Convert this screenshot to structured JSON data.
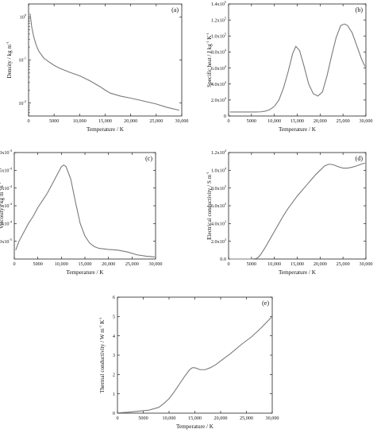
{
  "chart_data": [
    {
      "id": "a",
      "type": "line",
      "panel_label": "(a)",
      "xlabel": "Temperature / K",
      "ylabel": "Density / kg m",
      "ylabel_sup": "-3",
      "yscale": "log",
      "xlim": [
        0,
        30000
      ],
      "ylim": [
        0.005,
        2
      ],
      "xticks": [
        0,
        5000,
        10000,
        15000,
        20000,
        25000,
        30000
      ],
      "xtick_labels": [
        "0",
        "5000",
        "10,000",
        "15,000",
        "20,000",
        "25,000",
        "30,000"
      ],
      "yticks": [
        {
          "base": "10",
          "exp": "0",
          "value": 1
        },
        {
          "base": "10",
          "exp": "-1",
          "value": 0.1
        },
        {
          "base": "10",
          "exp": "-2",
          "value": 0.01
        }
      ],
      "series": [
        {
          "x": [
            300,
            600,
            1000,
            1500,
            2000,
            3000,
            4000,
            5000,
            6000,
            8000,
            10000,
            12000,
            14000,
            15000,
            16000,
            18000,
            20000,
            22000,
            25000,
            27000,
            29500
          ],
          "y": [
            1.2,
            0.6,
            0.35,
            0.22,
            0.16,
            0.11,
            0.09,
            0.075,
            0.065,
            0.052,
            0.043,
            0.033,
            0.024,
            0.02,
            0.017,
            0.0145,
            0.013,
            0.0115,
            0.0095,
            0.008,
            0.0068
          ]
        }
      ]
    },
    {
      "id": "b",
      "type": "line",
      "panel_label": "(b)",
      "xlabel": "Temperature / K",
      "ylabel": "Specific heat / J kg",
      "ylabel_sup": "-1",
      "ylabel_mid": "K",
      "ylabel_sup2": "-1",
      "xlim": [
        0,
        30000
      ],
      "ylim": [
        0,
        140000
      ],
      "xticks": [
        0,
        5000,
        10000,
        15000,
        20000,
        25000,
        30000
      ],
      "xtick_labels": [
        "0",
        "5000",
        "10,000",
        "15,000",
        "20,000",
        "25,000",
        "30,000"
      ],
      "yticks": [
        {
          "base": "0",
          "exp": "",
          "value": 0
        },
        {
          "base": "2.0x10",
          "exp": "4",
          "value": 20000
        },
        {
          "base": "4.0x10",
          "exp": "4",
          "value": 40000
        },
        {
          "base": "6.0x10",
          "exp": "4",
          "value": 60000
        },
        {
          "base": "8.0x10",
          "exp": "4",
          "value": 80000
        },
        {
          "base": "1.0x10",
          "exp": "5",
          "value": 100000
        },
        {
          "base": "1.2x10",
          "exp": "5",
          "value": 120000
        },
        {
          "base": "1.4x10",
          "exp": "5",
          "value": 140000
        }
      ],
      "series": [
        {
          "x": [
            300,
            2000,
            4000,
            6000,
            7000,
            8000,
            9000,
            10000,
            11000,
            12000,
            13000,
            14000,
            14700,
            15500,
            16500,
            17500,
            18500,
            19500,
            20500,
            21500,
            22500,
            23500,
            24500,
            25300,
            26000,
            27000,
            28000,
            29000,
            29800
          ],
          "y": [
            5000,
            5000,
            5000,
            5000,
            5200,
            6000,
            8000,
            12000,
            20000,
            35000,
            55000,
            78000,
            87000,
            82000,
            62000,
            40000,
            28000,
            25000,
            30000,
            50000,
            75000,
            98000,
            113000,
            115000,
            113000,
            104000,
            88000,
            72000,
            62000
          ]
        }
      ]
    },
    {
      "id": "c",
      "type": "line",
      "panel_label": "(c)",
      "xlabel": "Temperature / K",
      "ylabel": "Viscosity / kg m",
      "ylabel_sup": "-1",
      "ylabel_mid": "s",
      "ylabel_sup2": "-1",
      "xlim": [
        0,
        30000
      ],
      "ylim": [
        0,
        0.0003
      ],
      "xticks": [
        0,
        5000,
        10000,
        15000,
        20000,
        25000,
        30000
      ],
      "xtick_labels": [
        "0",
        "5000",
        "10,000",
        "15,000",
        "20,000",
        "25,000",
        "30,000"
      ],
      "yticks": [
        {
          "base": "5.0x10",
          "exp": "-5",
          "value": 5e-05
        },
        {
          "base": "1.0x10",
          "exp": "-4",
          "value": 0.0001
        },
        {
          "base": "1.5x10",
          "exp": "-4",
          "value": 0.00015
        },
        {
          "base": "2.0x10",
          "exp": "-4",
          "value": 0.0002
        },
        {
          "base": "2.5x10",
          "exp": "-4",
          "value": 0.00025
        },
        {
          "base": "3.0x10",
          "exp": "-4",
          "value": 0.0003
        }
      ],
      "series": [
        {
          "x": [
            300,
            1000,
            2000,
            3000,
            4000,
            5000,
            6000,
            7000,
            8000,
            9000,
            10000,
            10500,
            11000,
            12000,
            13000,
            14000,
            15000,
            16000,
            17000,
            18000,
            20000,
            22000,
            24000,
            26000,
            28000,
            29800
          ],
          "y": [
            2.5e-05,
            5e-05,
            7.5e-05,
            0.0001,
            0.00012,
            0.000145,
            0.000165,
            0.000185,
            0.00021,
            0.000235,
            0.00026,
            0.000265,
            0.00026,
            0.000225,
            0.00016,
            0.0001,
            6.5e-05,
            4.5e-05,
            3.5e-05,
            3e-05,
            2.7e-05,
            2.5e-05,
            2e-05,
            1.2e-05,
            8e-06,
            6e-06
          ]
        }
      ]
    },
    {
      "id": "d",
      "type": "line",
      "panel_label": "(d)",
      "xlabel": "Temperature / K",
      "ylabel": "Electrical conductivity / S m",
      "ylabel_sup": "-1",
      "xlim": [
        0,
        30000
      ],
      "ylim": [
        0,
        12000
      ],
      "xticks": [
        0,
        5000,
        10000,
        15000,
        20000,
        25000,
        30000
      ],
      "xtick_labels": [
        "0",
        "5000",
        "10,000",
        "15,000",
        "20,000",
        "25,000",
        "30,000"
      ],
      "yticks": [
        {
          "base": "0.0",
          "exp": "",
          "value": 0
        },
        {
          "base": "2.0x10",
          "exp": "3",
          "value": 2000
        },
        {
          "base": "4.0x10",
          "exp": "3",
          "value": 4000
        },
        {
          "base": "6.0x10",
          "exp": "3",
          "value": 6000
        },
        {
          "base": "8.0x10",
          "exp": "3",
          "value": 8000
        },
        {
          "base": "1.0x10",
          "exp": "4",
          "value": 10000
        },
        {
          "base": "1.2x10",
          "exp": "4",
          "value": 12000
        }
      ],
      "series": [
        {
          "x": [
            300,
            3000,
            5000,
            6000,
            6500,
            7000,
            8000,
            9000,
            10000,
            11000,
            12000,
            13000,
            14000,
            15000,
            16000,
            17000,
            18000,
            19000,
            20000,
            21000,
            22000,
            23000,
            24000,
            25000,
            26000,
            27000,
            28000,
            29000,
            29800
          ],
          "y": [
            0,
            0,
            0,
            50,
            200,
            500,
            1300,
            2200,
            3100,
            4000,
            4900,
            5700,
            6400,
            7100,
            7700,
            8300,
            8900,
            9500,
            10000,
            10500,
            10700,
            10600,
            10400,
            10250,
            10250,
            10350,
            10500,
            10700,
            10800
          ]
        }
      ]
    },
    {
      "id": "e",
      "type": "line",
      "panel_label": "(e)",
      "xlabel": "Temperature / K",
      "ylabel": "Thermal conductivity / W m",
      "ylabel_sup": "-1",
      "ylabel_mid": "K",
      "ylabel_sup2": "-1",
      "xlim": [
        0,
        30000
      ],
      "ylim": [
        0,
        6
      ],
      "xticks": [
        0,
        5000,
        10000,
        15000,
        20000,
        25000,
        30000
      ],
      "xtick_labels": [
        "0",
        "5000",
        "10,000",
        "15,000",
        "20,000",
        "25,000",
        "30,000"
      ],
      "yticks": [
        {
          "base": "0",
          "exp": "",
          "value": 0
        },
        {
          "base": "1",
          "exp": "",
          "value": 1
        },
        {
          "base": "2",
          "exp": "",
          "value": 2
        },
        {
          "base": "3",
          "exp": "",
          "value": 3
        },
        {
          "base": "4",
          "exp": "",
          "value": 4
        },
        {
          "base": "5",
          "exp": "",
          "value": 5
        },
        {
          "base": "6",
          "exp": "",
          "value": 6
        }
      ],
      "series": [
        {
          "x": [
            300,
            2000,
            4000,
            6000,
            8000,
            9000,
            10000,
            11000,
            12000,
            13000,
            14000,
            14500,
            15000,
            16000,
            17000,
            18000,
            19000,
            20000,
            22000,
            24000,
            26000,
            28000,
            29800
          ],
          "y": [
            0.02,
            0.05,
            0.1,
            0.15,
            0.3,
            0.5,
            0.75,
            1.1,
            1.5,
            1.9,
            2.25,
            2.35,
            2.35,
            2.25,
            2.25,
            2.35,
            2.5,
            2.7,
            3.1,
            3.55,
            3.95,
            4.45,
            4.95
          ]
        }
      ]
    }
  ]
}
